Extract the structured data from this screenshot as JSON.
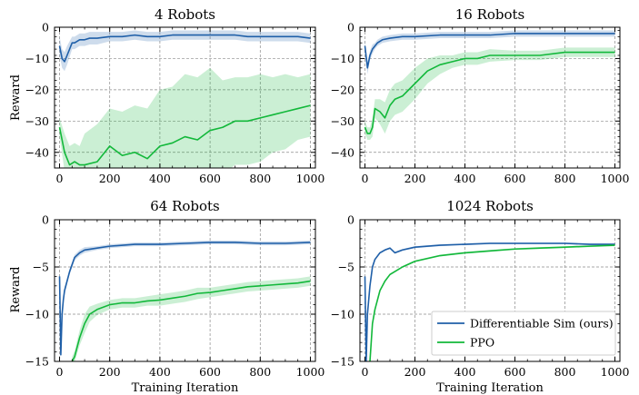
{
  "figure": {
    "legend": [
      {
        "label": "Differentiable Sim (ours)",
        "color": "#1f5fa8"
      },
      {
        "label": "PPO",
        "color": "#12b83a"
      }
    ],
    "legend_placement": "lower-right of bottom-right panel"
  },
  "chart_data": [
    {
      "type": "line",
      "title": "4 Robots",
      "xlabel": "",
      "ylabel": "Reward",
      "xlim": [
        -20,
        1020
      ],
      "ylim": [
        -45,
        0
      ],
      "xticks": [
        "0",
        "200",
        "400",
        "600",
        "800",
        "1000"
      ],
      "yticks": [
        "0",
        "−10",
        "−20",
        "−30",
        "−40"
      ],
      "grid": true,
      "series": [
        {
          "name": "Differentiable Sim (ours)",
          "color": "#1f5fa8",
          "x": [
            0,
            10,
            20,
            30,
            40,
            50,
            60,
            80,
            100,
            120,
            150,
            200,
            250,
            300,
            350,
            400,
            450,
            500,
            550,
            600,
            650,
            700,
            750,
            800,
            850,
            900,
            950,
            1000
          ],
          "y": [
            -6,
            -10,
            -11,
            -9,
            -7,
            -5,
            -5,
            -4,
            -4,
            -3.5,
            -3.5,
            -3,
            -3,
            -2.5,
            -3,
            -3,
            -2.5,
            -2.5,
            -2.5,
            -2.5,
            -2.5,
            -2.5,
            -3,
            -3,
            -3,
            -3,
            -3,
            -3.5
          ],
          "band": [
            3,
            3,
            3,
            3,
            2.5,
            2,
            2,
            2,
            2,
            2,
            2,
            1.5,
            1.5,
            1.5,
            1.5,
            1.5,
            1.5,
            1.5,
            1.5,
            1.5,
            1.5,
            1.5,
            1.5,
            1.5,
            1.5,
            1.5,
            1.5,
            1.5
          ]
        },
        {
          "name": "PPO",
          "color": "#12b83a",
          "x": [
            0,
            20,
            40,
            60,
            80,
            100,
            150,
            200,
            250,
            300,
            350,
            400,
            450,
            500,
            550,
            600,
            650,
            700,
            750,
            800,
            850,
            900,
            950,
            1000
          ],
          "y": [
            -32,
            -40,
            -44,
            -43,
            -44,
            -44,
            -43,
            -38,
            -41,
            -40,
            -42,
            -38,
            -37,
            -35,
            -36,
            -33,
            -32,
            -30,
            -30,
            -29,
            -28,
            -27,
            -26,
            -25
          ],
          "band": [
            3,
            6,
            6,
            6,
            6,
            10,
            12,
            12,
            14,
            15,
            16,
            18,
            18,
            20,
            20,
            20,
            15,
            14,
            14,
            14,
            12,
            12,
            10,
            10
          ]
        }
      ]
    },
    {
      "type": "line",
      "title": "16 Robots",
      "xlabel": "",
      "ylabel": "",
      "xlim": [
        -20,
        1020
      ],
      "ylim": [
        -45,
        0
      ],
      "xticks": [
        "0",
        "200",
        "400",
        "600",
        "800",
        "1000"
      ],
      "yticks": [
        "0",
        "−10",
        "−20",
        "−30",
        "−40"
      ],
      "grid": true,
      "series": [
        {
          "name": "Differentiable Sim (ours)",
          "color": "#1f5fa8",
          "x": [
            0,
            10,
            20,
            30,
            40,
            50,
            70,
            100,
            150,
            200,
            300,
            400,
            500,
            600,
            700,
            800,
            900,
            1000
          ],
          "y": [
            -6,
            -13,
            -9,
            -7,
            -6,
            -5,
            -4,
            -3.5,
            -3,
            -3,
            -2.5,
            -2.5,
            -2.5,
            -2,
            -2,
            -2,
            -2,
            -2
          ],
          "band": [
            2,
            2,
            1.5,
            1.5,
            1,
            1,
            1,
            1,
            1,
            1,
            1,
            1,
            1,
            1,
            1,
            1,
            1,
            1
          ]
        },
        {
          "name": "PPO",
          "color": "#12b83a",
          "x": [
            0,
            10,
            20,
            30,
            40,
            60,
            80,
            100,
            120,
            150,
            200,
            250,
            300,
            350,
            400,
            450,
            500,
            600,
            700,
            800,
            900,
            1000
          ],
          "y": [
            -32,
            -34,
            -34,
            -32,
            -26,
            -27,
            -29,
            -25,
            -23,
            -22,
            -18,
            -14,
            -12,
            -11,
            -10,
            -10,
            -9,
            -9,
            -9,
            -8,
            -8,
            -8
          ],
          "band": [
            2,
            2,
            2,
            3,
            3,
            4,
            5,
            5,
            5,
            5,
            5,
            4,
            3,
            2,
            2,
            2,
            2,
            1.5,
            1.5,
            1.5,
            1.5,
            1.5
          ]
        }
      ]
    },
    {
      "type": "line",
      "title": "64 Robots",
      "xlabel": "Training Iteration",
      "ylabel": "Reward",
      "xlim": [
        -20,
        1020
      ],
      "ylim": [
        -15,
        0
      ],
      "xticks": [
        "0",
        "200",
        "400",
        "600",
        "800",
        "1000"
      ],
      "yticks": [
        "0",
        "−5",
        "−10",
        "−15"
      ],
      "grid": true,
      "series": [
        {
          "name": "Differentiable Sim (ours)",
          "color": "#1f5fa8",
          "x": [
            0,
            5,
            10,
            15,
            20,
            30,
            40,
            60,
            80,
            100,
            150,
            200,
            300,
            400,
            500,
            600,
            700,
            800,
            900,
            1000
          ],
          "y": [
            -6,
            -14.3,
            -10,
            -8.5,
            -7.5,
            -6.5,
            -5.5,
            -4,
            -3.5,
            -3.2,
            -3,
            -2.8,
            -2.6,
            -2.6,
            -2.5,
            -2.4,
            -2.4,
            -2.5,
            -2.5,
            -2.4
          ],
          "band": [
            0.5,
            0.5,
            0.5,
            0.4,
            0.4,
            0.3,
            0.3,
            0.3,
            0.3,
            0.3,
            0.2,
            0.2,
            0.2,
            0.2,
            0.2,
            0.2,
            0.2,
            0.2,
            0.2,
            0.2
          ]
        },
        {
          "name": "PPO",
          "color": "#12b83a",
          "x": [
            50,
            60,
            80,
            100,
            120,
            150,
            200,
            250,
            300,
            350,
            400,
            450,
            500,
            550,
            600,
            650,
            700,
            750,
            800,
            850,
            900,
            950,
            1000
          ],
          "y": [
            -15,
            -14.5,
            -12.5,
            -11,
            -10,
            -9.5,
            -9,
            -8.8,
            -8.8,
            -8.6,
            -8.5,
            -8.3,
            -8.1,
            -7.8,
            -7.7,
            -7.5,
            -7.3,
            -7.1,
            -7,
            -6.9,
            -6.8,
            -6.7,
            -6.5
          ],
          "band": [
            0.5,
            0.6,
            0.8,
            1,
            0.8,
            0.6,
            0.5,
            0.5,
            0.5,
            0.5,
            0.6,
            0.6,
            0.6,
            0.6,
            0.5,
            0.5,
            0.5,
            0.5,
            0.5,
            0.5,
            0.5,
            0.5,
            0.5
          ]
        }
      ]
    },
    {
      "type": "line",
      "title": "1024 Robots",
      "xlabel": "Training Iteration",
      "ylabel": "",
      "xlim": [
        -20,
        1020
      ],
      "ylim": [
        -15,
        0
      ],
      "xticks": [
        "0",
        "200",
        "400",
        "600",
        "800",
        "1000"
      ],
      "yticks": [
        "0",
        "−5",
        "−10",
        "−15"
      ],
      "grid": true,
      "series": [
        {
          "name": "Differentiable Sim (ours)",
          "color": "#1f5fa8",
          "x": [
            0,
            5,
            10,
            20,
            30,
            40,
            60,
            80,
            100,
            120,
            150,
            200,
            300,
            400,
            500,
            600,
            700,
            800,
            900,
            1000
          ],
          "y": [
            -6,
            -15,
            -10,
            -7,
            -5,
            -4.2,
            -3.5,
            -3.2,
            -3,
            -3.5,
            -3.2,
            -2.9,
            -2.7,
            -2.6,
            -2.5,
            -2.5,
            -2.5,
            -2.5,
            -2.6,
            -2.6
          ],
          "band": [
            0.1,
            0.1,
            0.1,
            0.1,
            0.1,
            0.1,
            0.1,
            0.1,
            0.1,
            0.1,
            0.1,
            0.1,
            0.1,
            0.1,
            0.1,
            0.1,
            0.1,
            0.1,
            0.1,
            0.1
          ]
        },
        {
          "name": "PPO",
          "color": "#12b83a",
          "x": [
            20,
            30,
            40,
            60,
            80,
            100,
            150,
            200,
            250,
            300,
            400,
            500,
            600,
            700,
            800,
            900,
            1000
          ],
          "y": [
            -15,
            -11,
            -9.5,
            -7.5,
            -6.5,
            -5.8,
            -5,
            -4.4,
            -4.1,
            -3.8,
            -3.5,
            -3.3,
            -3.1,
            -3,
            -2.9,
            -2.8,
            -2.7
          ],
          "band": [
            0.1,
            0.1,
            0.1,
            0.1,
            0.1,
            0.1,
            0.1,
            0.1,
            0.1,
            0.1,
            0.1,
            0.1,
            0.1,
            0.1,
            0.1,
            0.1,
            0.1
          ]
        }
      ]
    }
  ]
}
